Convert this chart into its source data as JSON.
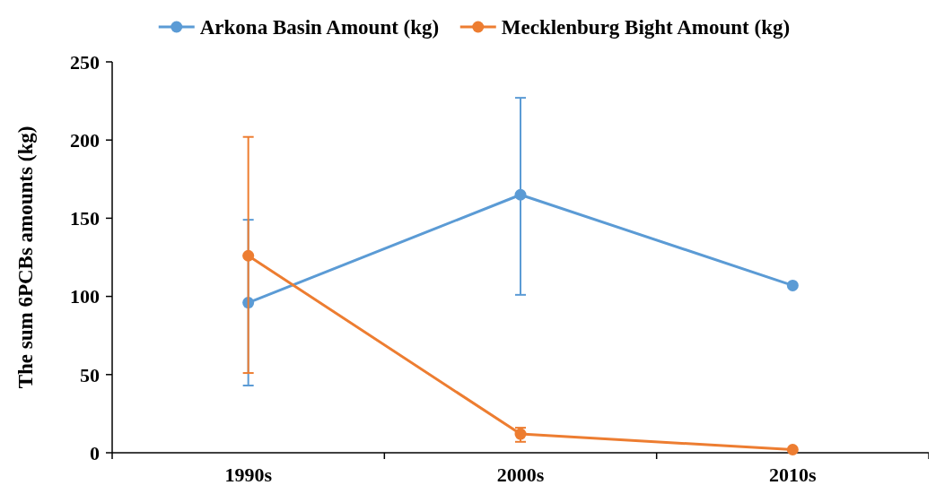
{
  "chart_data": {
    "type": "line",
    "ylabel": "The sum 6PCBs amounts (kg)",
    "categories": [
      "1990s",
      "2000s",
      "2010s"
    ],
    "series": [
      {
        "name": "Arkona Basin Amount (kg)",
        "color": "#5b9bd5",
        "values": [
          96,
          165,
          107
        ],
        "errors": [
          [
            43,
            149
          ],
          [
            101,
            227
          ],
          null
        ]
      },
      {
        "name": "Mecklenburg Bight Amount (kg)",
        "color": "#ed7d31",
        "values": [
          126,
          12,
          2
        ],
        "errors": [
          [
            51,
            202
          ],
          [
            7,
            16
          ],
          null
        ]
      }
    ],
    "ylim": [
      0,
      250
    ],
    "yticks": [
      0,
      50,
      100,
      150,
      200,
      250
    ],
    "grid": false,
    "legend": "top",
    "marker": "circle",
    "line_style": "solid"
  }
}
